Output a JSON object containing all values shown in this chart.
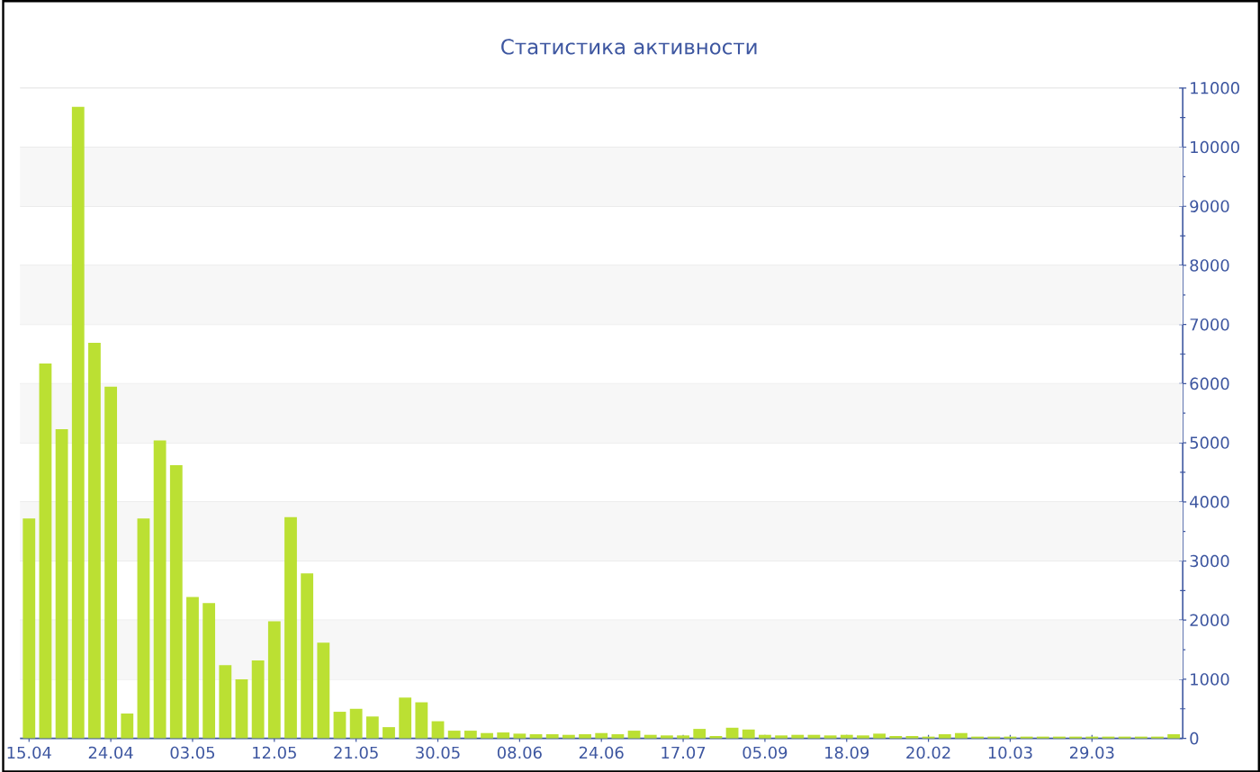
{
  "chart_data": {
    "type": "bar",
    "title": "Статистика активности",
    "categories": [
      "15.04",
      null,
      null,
      null,
      null,
      "24.04",
      null,
      null,
      null,
      null,
      "03.05",
      null,
      null,
      null,
      null,
      "12.05",
      null,
      null,
      null,
      null,
      "21.05",
      null,
      null,
      null,
      null,
      "30.05",
      null,
      null,
      null,
      null,
      "08.06",
      null,
      null,
      null,
      null,
      "24.06",
      null,
      null,
      null,
      null,
      "17.07",
      null,
      null,
      null,
      null,
      "05.09",
      null,
      null,
      null,
      null,
      "18.09",
      null,
      null,
      null,
      null,
      "20.02",
      null,
      null,
      null,
      null,
      "10.03",
      null,
      null,
      null,
      null,
      "29.03",
      null,
      null,
      null,
      null,
      null
    ],
    "values": [
      3720,
      6340,
      5230,
      10680,
      6690,
      5950,
      420,
      3720,
      5040,
      4620,
      2390,
      2290,
      1240,
      1000,
      1320,
      1980,
      3740,
      2790,
      1620,
      450,
      500,
      370,
      190,
      690,
      610,
      290,
      130,
      130,
      90,
      100,
      80,
      70,
      70,
      60,
      70,
      90,
      70,
      130,
      60,
      50,
      50,
      160,
      40,
      180,
      150,
      60,
      50,
      60,
      60,
      50,
      60,
      50,
      80,
      40,
      40,
      30,
      70,
      90,
      30,
      30,
      30,
      30,
      30,
      30,
      30,
      30,
      30,
      30,
      30,
      30,
      70
    ],
    "color": "#bbe033",
    "ylim": [
      0,
      11000
    ],
    "yticks": [
      0,
      1000,
      2000,
      3000,
      4000,
      5000,
      6000,
      7000,
      8000,
      9000,
      10000,
      11000
    ],
    "grid": "y"
  }
}
